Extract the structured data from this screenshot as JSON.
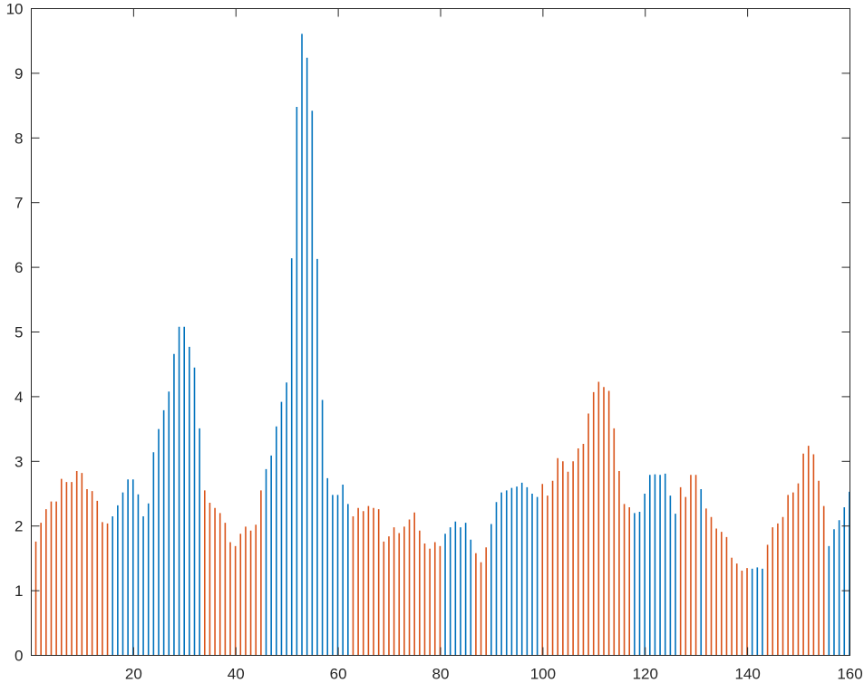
{
  "chart_data": {
    "type": "bar",
    "title": "",
    "xlabel": "",
    "ylabel": "",
    "xlim": [
      0,
      160
    ],
    "ylim": [
      0,
      10
    ],
    "grid": false,
    "legend": "none",
    "xticks": [
      20,
      40,
      60,
      80,
      100,
      120,
      140,
      160
    ],
    "xtick_labels": [
      "20",
      "40",
      "60",
      "80",
      "100",
      "120",
      "140",
      "160"
    ],
    "yticks": [
      0,
      1,
      2,
      3,
      4,
      5,
      6,
      7,
      8,
      9,
      10
    ],
    "ytick_labels": [
      "0",
      "1",
      "2",
      "3",
      "4",
      "5",
      "6",
      "7",
      "8",
      "9",
      "10"
    ],
    "colors": {
      "blue": "#0072BD",
      "orange": "#D95319",
      "axis": "#262626"
    },
    "series": [
      {
        "name": "orange",
        "color": "#D95319",
        "x": [
          1,
          2,
          3,
          4,
          5,
          6,
          7,
          8,
          9,
          10,
          11,
          12,
          13,
          14,
          15,
          34,
          35,
          36,
          37,
          38,
          39,
          40,
          41,
          42,
          43,
          44,
          45,
          63,
          64,
          65,
          66,
          67,
          68,
          69,
          70,
          71,
          72,
          73,
          74,
          75,
          76,
          77,
          78,
          79,
          80,
          87,
          88,
          89,
          100,
          101,
          102,
          103,
          104,
          105,
          106,
          107,
          108,
          109,
          110,
          111,
          112,
          113,
          114,
          115,
          116,
          117,
          127,
          128,
          129,
          130,
          132,
          133,
          134,
          135,
          136,
          137,
          138,
          139,
          140,
          144,
          145,
          146,
          147,
          148,
          149,
          150,
          151,
          152,
          153,
          154,
          155
        ],
        "values": [
          1.76,
          2.05,
          2.26,
          2.38,
          2.38,
          2.73,
          2.68,
          2.68,
          2.85,
          2.82,
          2.57,
          2.54,
          2.39,
          2.06,
          2.04,
          2.55,
          2.36,
          2.28,
          2.2,
          2.05,
          1.75,
          1.69,
          1.88,
          1.99,
          1.93,
          2.02,
          2.55,
          2.15,
          2.28,
          2.23,
          2.31,
          2.28,
          2.26,
          1.76,
          1.84,
          1.98,
          1.89,
          1.99,
          2.1,
          2.21,
          1.93,
          1.73,
          1.65,
          1.75,
          1.69,
          1.58,
          1.44,
          1.67,
          2.65,
          2.47,
          2.7,
          3.05,
          3.0,
          2.84,
          3.0,
          3.2,
          3.27,
          3.74,
          4.07,
          4.23,
          4.15,
          4.09,
          3.51,
          2.85,
          2.34,
          2.29,
          2.6,
          2.45,
          2.79,
          2.79,
          2.27,
          2.14,
          1.96,
          1.91,
          1.83,
          1.51,
          1.42,
          1.31,
          1.35,
          1.71,
          1.98,
          2.04,
          2.14,
          2.48,
          2.52,
          2.66,
          3.12,
          3.24,
          3.11,
          2.7,
          2.31
        ]
      },
      {
        "name": "blue",
        "color": "#0072BD",
        "x": [
          16,
          17,
          18,
          19,
          20,
          21,
          22,
          23,
          24,
          25,
          26,
          27,
          28,
          29,
          30,
          31,
          32,
          33,
          46,
          47,
          48,
          49,
          50,
          51,
          52,
          53,
          54,
          55,
          56,
          57,
          58,
          59,
          60,
          61,
          62,
          81,
          82,
          83,
          84,
          85,
          86,
          90,
          91,
          92,
          93,
          94,
          95,
          96,
          97,
          98,
          99,
          118,
          119,
          120,
          121,
          122,
          123,
          124,
          125,
          126,
          131,
          141,
          142,
          143,
          156,
          157,
          158,
          159,
          160
        ],
        "values": [
          2.15,
          2.32,
          2.52,
          2.72,
          2.72,
          2.49,
          2.15,
          2.35,
          3.14,
          3.5,
          3.79,
          4.08,
          4.66,
          5.08,
          5.08,
          4.77,
          4.45,
          3.51,
          2.88,
          3.09,
          3.54,
          3.92,
          4.22,
          6.14,
          8.48,
          9.61,
          9.24,
          8.42,
          6.13,
          3.95,
          2.74,
          2.48,
          2.48,
          2.64,
          2.34,
          1.88,
          1.98,
          2.07,
          1.98,
          2.05,
          1.79,
          2.03,
          2.37,
          2.52,
          2.55,
          2.59,
          2.61,
          2.67,
          2.6,
          2.5,
          2.45,
          2.2,
          2.22,
          2.5,
          2.79,
          2.8,
          2.79,
          2.81,
          2.47,
          2.19,
          2.57,
          1.34,
          1.36,
          1.34,
          1.69,
          1.95,
          2.09,
          2.29,
          2.53
        ]
      }
    ]
  }
}
